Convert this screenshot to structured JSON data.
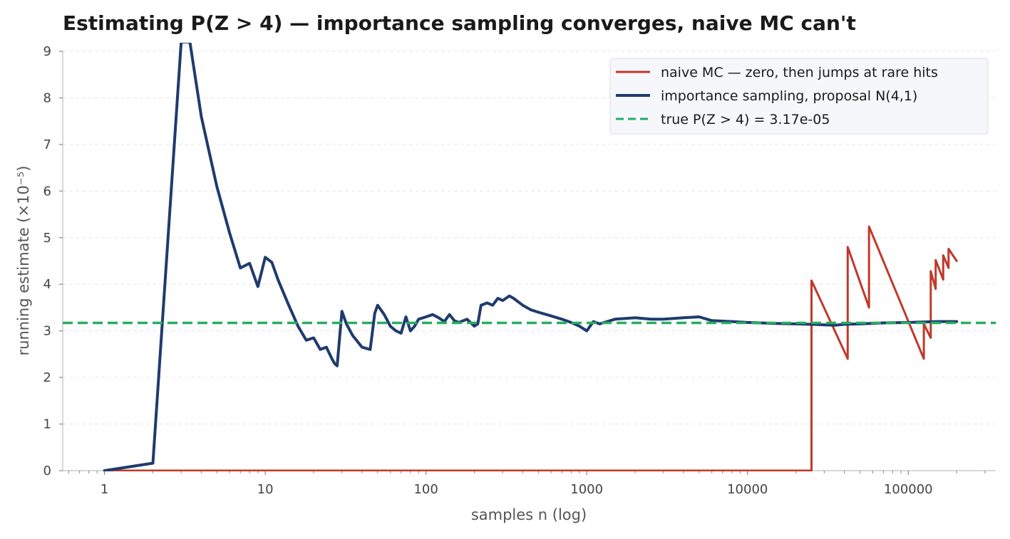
{
  "chart_data": {
    "type": "line",
    "title": "Estimating P(Z > 4) — importance sampling converges, naive MC can't",
    "xlabel": "samples n (log)",
    "ylabel": "running estimate (×10⁻⁵)",
    "x_scale": "log",
    "xlim": [
      0.55,
      350000
    ],
    "ylim": [
      0,
      9
    ],
    "x_ticks": [
      1,
      10,
      100,
      1000,
      10000,
      100000
    ],
    "x_tick_labels": [
      "1",
      "10",
      "100",
      "1000",
      "10000",
      "100000"
    ],
    "y_ticks": [
      0,
      1,
      2,
      3,
      4,
      5,
      6,
      7,
      8,
      9
    ],
    "y_tick_labels": [
      "0",
      "1",
      "2",
      "3",
      "4",
      "5",
      "6",
      "7",
      "8",
      "9"
    ],
    "grid": "horizontal dashed",
    "legend_position": "top-right",
    "series": [
      {
        "name": "naive MC — zero, then jumps at rare hits",
        "color": "#c0392b",
        "style": "solid",
        "x": [
          1,
          25000,
          25000,
          42000,
          42000,
          57000,
          57000,
          125000,
          125000,
          138000,
          138000,
          148000,
          148000,
          165000,
          165000,
          178000,
          178000,
          200000
        ],
        "y": [
          0,
          0,
          4.08,
          2.4,
          4.8,
          3.5,
          5.24,
          2.4,
          3.15,
          2.85,
          4.28,
          3.9,
          4.52,
          4.1,
          4.62,
          4.35,
          4.76,
          4.5
        ]
      },
      {
        "name": "importance sampling, proposal N(4,1)",
        "color": "#1f3b6e",
        "style": "solid",
        "x": [
          1,
          2,
          3,
          3.4,
          4,
          5,
          6,
          7,
          8,
          9,
          10,
          11,
          12,
          14,
          16,
          18,
          20,
          22,
          24,
          26,
          27,
          28,
          30,
          32,
          35,
          40,
          45,
          48,
          50,
          55,
          60,
          65,
          70,
          75,
          80,
          85,
          90,
          100,
          110,
          120,
          130,
          140,
          150,
          160,
          180,
          200,
          210,
          220,
          240,
          260,
          280,
          300,
          330,
          350,
          400,
          450,
          500,
          600,
          700,
          800,
          900,
          1000,
          1100,
          1200,
          1500,
          2000,
          2500,
          3000,
          4000,
          5000,
          6000,
          8000,
          10000,
          15000,
          20000,
          25000,
          30000,
          35000,
          40000,
          50000,
          70000,
          100000,
          150000,
          200000
        ],
        "y": [
          0,
          0.16,
          9.2,
          9.2,
          7.6,
          6.1,
          5.1,
          4.35,
          4.45,
          3.95,
          4.58,
          4.47,
          4.1,
          3.55,
          3.1,
          2.8,
          2.85,
          2.6,
          2.65,
          2.4,
          2.3,
          2.25,
          3.42,
          3.15,
          2.9,
          2.65,
          2.6,
          3.38,
          3.55,
          3.35,
          3.1,
          3.0,
          2.95,
          3.3,
          3.0,
          3.1,
          3.25,
          3.3,
          3.35,
          3.28,
          3.2,
          3.35,
          3.22,
          3.18,
          3.25,
          3.1,
          3.15,
          3.55,
          3.6,
          3.55,
          3.7,
          3.65,
          3.75,
          3.7,
          3.55,
          3.45,
          3.4,
          3.32,
          3.25,
          3.18,
          3.1,
          3.0,
          3.2,
          3.15,
          3.25,
          3.28,
          3.25,
          3.25,
          3.28,
          3.3,
          3.22,
          3.2,
          3.18,
          3.16,
          3.15,
          3.14,
          3.13,
          3.12,
          3.14,
          3.15,
          3.17,
          3.18,
          3.2,
          3.2
        ]
      },
      {
        "name": "true P(Z > 4) = 3.17e-05",
        "color": "#27ae60",
        "style": "dashed",
        "x": [
          0.55,
          350000
        ],
        "y": [
          3.17,
          3.17
        ]
      }
    ]
  }
}
